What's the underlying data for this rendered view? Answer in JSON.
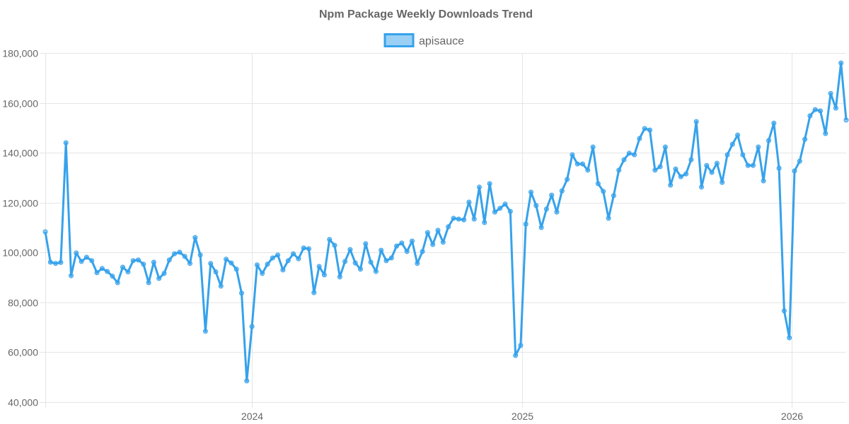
{
  "chart_data": {
    "type": "line",
    "title": "Npm Package Weekly Downloads Trend",
    "xlabel": "",
    "ylabel": "",
    "ylim": [
      40000,
      180000
    ],
    "yticks": [
      "180,000",
      "160,000",
      "140,000",
      "120,000",
      "100,000",
      "80,000",
      "60,000",
      "40,000"
    ],
    "xticks": [
      {
        "date": "2024-01-01",
        "label": "2024"
      },
      {
        "date": "2025-01-01",
        "label": "2025"
      },
      {
        "date": "2026-01-01",
        "label": "2026"
      }
    ],
    "grid": true,
    "legend_position": "top",
    "colors": {
      "line": "#36a2eb",
      "fill": "rgba(54,162,235,0.5)"
    },
    "x": [
      "2023-03-27",
      "2023-04-03",
      "2023-04-10",
      "2023-04-17",
      "2023-04-24",
      "2023-05-01",
      "2023-05-08",
      "2023-05-15",
      "2023-05-22",
      "2023-05-29",
      "2023-06-05",
      "2023-06-12",
      "2023-06-19",
      "2023-06-26",
      "2023-07-03",
      "2023-07-10",
      "2023-07-17",
      "2023-07-24",
      "2023-07-31",
      "2023-08-07",
      "2023-08-14",
      "2023-08-21",
      "2023-08-28",
      "2023-09-04",
      "2023-09-11",
      "2023-09-18",
      "2023-09-25",
      "2023-10-02",
      "2023-10-09",
      "2023-10-16",
      "2023-10-23",
      "2023-10-30",
      "2023-11-06",
      "2023-11-13",
      "2023-11-20",
      "2023-11-27",
      "2023-12-04",
      "2023-12-11",
      "2023-12-18",
      "2023-12-25",
      "2024-01-01",
      "2024-01-08",
      "2024-01-15",
      "2024-01-22",
      "2024-01-29",
      "2024-02-05",
      "2024-02-12",
      "2024-02-19",
      "2024-02-26",
      "2024-03-04",
      "2024-03-11",
      "2024-03-18",
      "2024-03-25",
      "2024-04-01",
      "2024-04-08",
      "2024-04-15",
      "2024-04-22",
      "2024-04-29",
      "2024-05-06",
      "2024-05-13",
      "2024-05-20",
      "2024-05-27",
      "2024-06-03",
      "2024-06-10",
      "2024-06-17",
      "2024-06-24",
      "2024-07-01",
      "2024-07-08",
      "2024-07-15",
      "2024-07-22",
      "2024-07-29",
      "2024-08-05",
      "2024-08-12",
      "2024-08-19",
      "2024-08-26",
      "2024-09-02",
      "2024-09-09",
      "2024-09-16",
      "2024-09-23",
      "2024-09-30",
      "2024-10-07",
      "2024-10-14",
      "2024-10-21",
      "2024-10-28",
      "2024-11-04",
      "2024-11-11",
      "2024-11-18",
      "2024-11-25",
      "2024-12-02",
      "2024-12-09",
      "2024-12-16",
      "2024-12-23",
      "2024-12-30",
      "2025-01-06",
      "2025-01-13",
      "2025-01-20",
      "2025-01-27",
      "2025-02-03",
      "2025-02-10",
      "2025-02-17",
      "2025-02-24",
      "2025-03-03",
      "2025-03-10",
      "2025-03-17",
      "2025-03-24",
      "2025-03-31",
      "2025-04-07",
      "2025-04-14",
      "2025-04-21",
      "2025-04-28",
      "2025-05-05",
      "2025-05-12",
      "2025-05-19",
      "2025-05-26",
      "2025-06-02",
      "2025-06-09",
      "2025-06-16",
      "2025-06-23",
      "2025-06-30",
      "2025-07-07",
      "2025-07-14",
      "2025-07-21",
      "2025-07-28",
      "2025-08-04",
      "2025-08-11",
      "2025-08-18",
      "2025-08-25",
      "2025-09-01",
      "2025-09-08",
      "2025-09-15",
      "2025-09-22",
      "2025-09-29",
      "2025-10-06",
      "2025-10-13",
      "2025-10-20",
      "2025-10-27",
      "2025-11-03",
      "2025-11-10",
      "2025-11-17",
      "2025-11-24",
      "2025-12-01",
      "2025-12-08",
      "2025-12-15",
      "2025-12-22",
      "2025-12-29",
      "2026-01-05",
      "2026-01-12",
      "2026-01-19",
      "2026-01-26",
      "2026-02-02",
      "2026-02-09",
      "2026-02-16",
      "2026-02-23",
      "2026-03-02",
      "2026-03-09",
      "2026-03-16"
    ],
    "series": [
      {
        "name": "apisauce",
        "values": [
          108300,
          96100,
          95600,
          96000,
          144000,
          90700,
          99800,
          96400,
          98100,
          96700,
          91900,
          93600,
          92400,
          90500,
          87900,
          94100,
          92200,
          96700,
          97000,
          95300,
          87900,
          96100,
          89600,
          91600,
          97000,
          99500,
          100100,
          98400,
          95600,
          106000,
          99000,
          68400,
          95600,
          92200,
          86500,
          97300,
          95800,
          93300,
          83700,
          48500,
          70300,
          95000,
          91600,
          95300,
          97800,
          99000,
          93000,
          96700,
          99500,
          97500,
          101800,
          101500,
          83900,
          94400,
          91000,
          105200,
          102900,
          90200,
          96400,
          101200,
          95800,
          93300,
          103500,
          96100,
          92400,
          100900,
          96700,
          97800,
          102600,
          103800,
          100400,
          104600,
          95600,
          100400,
          108000,
          103200,
          108900,
          104100,
          110300,
          113700,
          113400,
          113100,
          120200,
          113400,
          126200,
          112000,
          127600,
          116200,
          117700,
          119400,
          116500,
          58700,
          62700,
          111400,
          124200,
          118800,
          110000,
          117400,
          123000,
          116200,
          124700,
          129300,
          139200,
          135500,
          135500,
          133000,
          142300,
          127600,
          124500,
          113700,
          122800,
          133000,
          137200,
          139800,
          139200,
          145700,
          149700,
          149100,
          133000,
          134400,
          142300,
          127000,
          133500,
          130400,
          131500,
          137200,
          152500,
          126200,
          134900,
          132100,
          135800,
          128100,
          139200,
          143400,
          147100,
          139200,
          134900,
          134900,
          142300,
          128700,
          144900,
          151900,
          133800,
          76600,
          65800,
          132700,
          136600,
          145400,
          154800,
          157300,
          156800,
          147700,
          163800,
          157900,
          176000,
          153100
        ]
      }
    ]
  }
}
